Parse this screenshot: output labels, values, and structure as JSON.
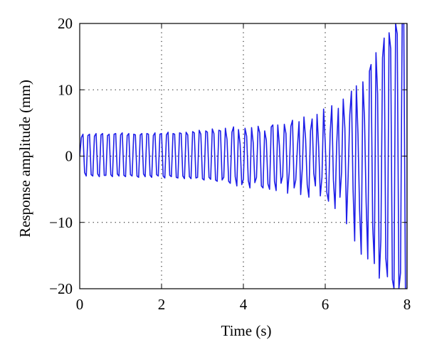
{
  "chart_data": {
    "type": "line",
    "title": "",
    "xlabel": "Time (s)",
    "ylabel": "Response amplitude (mm)",
    "xlim": [
      0,
      8
    ],
    "ylim": [
      -20,
      20
    ],
    "xticks": [
      0,
      2,
      4,
      6,
      8
    ],
    "xtick_labels": [
      "0",
      "2",
      "4",
      "6",
      "8"
    ],
    "yticks": [
      -20,
      -10,
      0,
      10,
      20
    ],
    "ytick_labels": [
      "−20",
      "−10",
      "0",
      "10",
      "20"
    ],
    "grid": true,
    "grid_style": "dotted",
    "legend": "none",
    "series": [
      {
        "color": "#1f1fe8",
        "sample_interval_s": 0.04,
        "x_start": 0,
        "y": [
          0,
          2.8,
          3.3,
          -2.5,
          -3.0,
          3.1,
          3.3,
          -2.8,
          -3.0,
          3.0,
          3.4,
          -2.7,
          -3.1,
          3.2,
          3.4,
          -2.9,
          -2.9,
          3.1,
          3.3,
          -2.8,
          -3.1,
          3.3,
          3.4,
          -2.7,
          -3.0,
          3.2,
          3.5,
          -2.9,
          -3.1,
          3.1,
          3.4,
          -2.8,
          -3.0,
          3.3,
          3.2,
          -3.0,
          -3.2,
          3.2,
          3.4,
          -2.7,
          -3.1,
          3.4,
          3.3,
          -2.9,
          -3.2,
          3.1,
          3.5,
          -2.8,
          -3.0,
          3.3,
          3.4,
          -3.0,
          -3.3,
          3.2,
          3.6,
          -2.9,
          -3.1,
          3.4,
          3.3,
          -3.2,
          -3.3,
          3.5,
          3.4,
          -3.0,
          -3.4,
          3.6,
          3.2,
          -3.1,
          -3.4,
          3.7,
          3.5,
          -3.3,
          -3.2,
          3.9,
          3.3,
          -3.4,
          -3.6,
          3.8,
          3.6,
          -3.2,
          -3.5,
          4.1,
          3.4,
          -3.6,
          -3.8,
          3.9,
          3.8,
          -3.6,
          -3.2,
          4.2,
          2.5,
          -3.8,
          -4.1,
          3.6,
          4.4,
          -3.1,
          -4.5,
          4.0,
          1.8,
          -4.3,
          -3.5,
          4.2,
          3.0,
          -3.7,
          -4.8,
          4.3,
          2.0,
          -4.0,
          -3.2,
          4.5,
          3.5,
          -4.5,
          -4.8,
          3.8,
          2.4,
          -4.2,
          -5.0,
          4.4,
          4.7,
          -3.8,
          -5.2,
          4.7,
          1.6,
          -4.1,
          -3.0,
          4.8,
          3.4,
          -5.6,
          -2.4,
          4.5,
          5.4,
          -4.8,
          -3.6,
          1.3,
          5.2,
          -5.8,
          -1.9,
          5.9,
          2.6,
          -4.3,
          -6.2,
          3.8,
          5.6,
          -2.6,
          -4.5,
          6.3,
          1.4,
          -6.0,
          -3.2,
          7.1,
          2.0,
          -5.5,
          -6.8,
          3.4,
          7.6,
          -3.6,
          -7.9,
          1.8,
          7.2,
          -6.2,
          -2.4,
          8.6,
          4.2,
          -10.2,
          -3.0,
          6.2,
          9.8,
          -5.0,
          -12.8,
          10.6,
          3.4,
          -8.2,
          -14.8,
          11.2,
          5.6,
          -7.0,
          -15.5,
          12.8,
          13.8,
          -10.5,
          -16.2,
          15.6,
          9.4,
          -18.4,
          -12.6,
          14.8,
          17.8,
          -15.4,
          -18.2,
          18.6,
          16.2,
          -18.6,
          -20.0,
          20.0,
          18.4,
          -20.0,
          -17.6,
          20.0,
          20.0,
          -20.0,
          -20.0,
          20.0,
          20.0,
          -20.0,
          -20.0,
          20.0,
          20.0,
          -20.0,
          -20.0,
          20.0,
          20.0,
          -20.0,
          -20.0,
          20.0
        ]
      }
    ]
  }
}
